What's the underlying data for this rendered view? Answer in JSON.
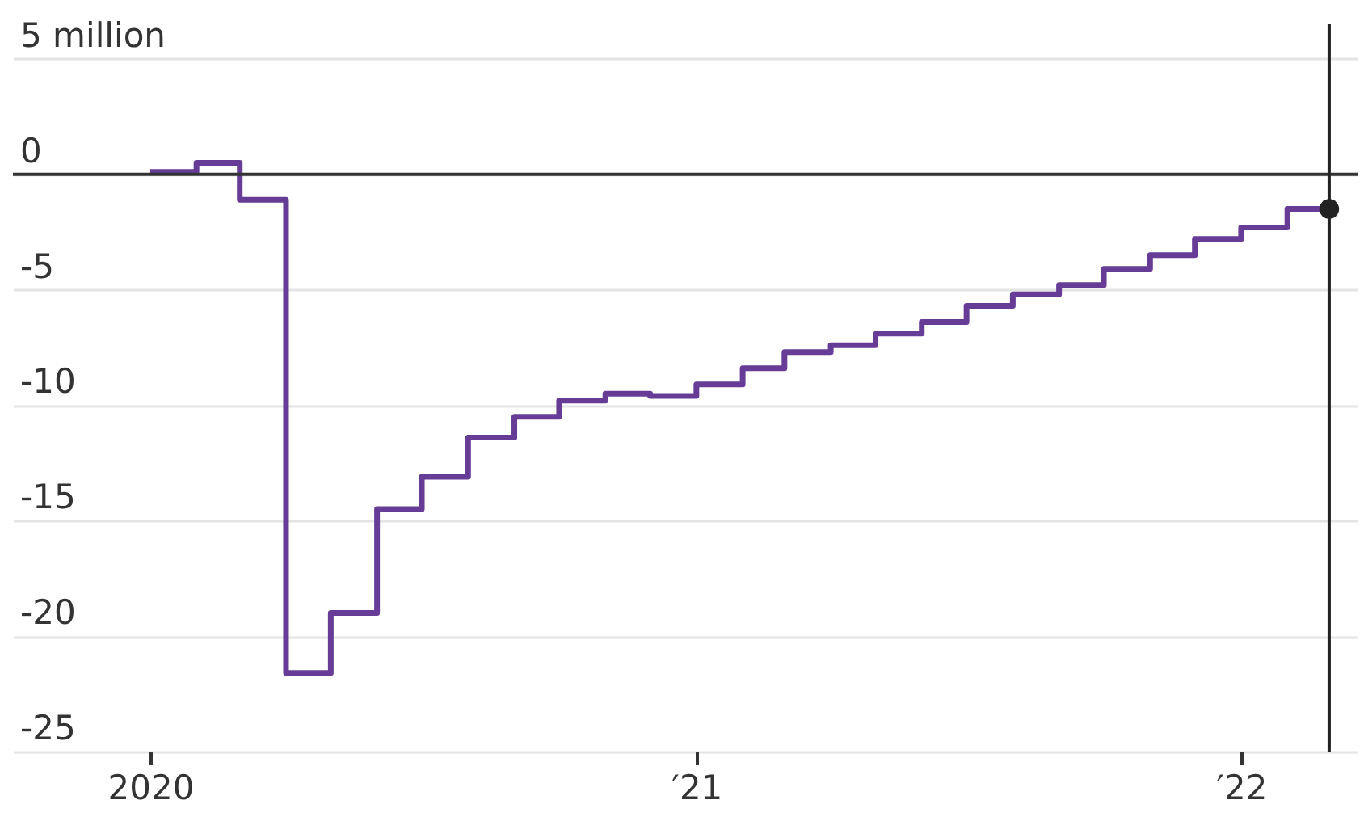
{
  "chart_data": {
    "type": "step",
    "x": [
      "2020-01",
      "2020-02",
      "2020-03",
      "2020-04",
      "2020-05",
      "2020-06",
      "2020-07",
      "2020-08",
      "2020-09",
      "2020-10",
      "2020-11",
      "2020-12",
      "2021-01",
      "2021-02",
      "2021-03",
      "2021-04",
      "2021-05",
      "2021-06",
      "2021-07",
      "2021-08",
      "2021-09",
      "2021-10",
      "2021-11",
      "2021-12",
      "2022-01",
      "2022-02",
      "2022-03"
    ],
    "series": [
      {
        "color": "#673c97",
        "values": [
          0.1,
          0.5,
          -1.1,
          -21.6,
          -19.0,
          -14.5,
          -13.1,
          -11.4,
          -10.5,
          -9.8,
          -9.5,
          -9.6,
          -9.1,
          -8.4,
          -7.7,
          -7.4,
          -6.9,
          -6.4,
          -5.7,
          -5.2,
          -4.8,
          -4.1,
          -3.5,
          -2.8,
          -2.3,
          -1.5,
          -1.5
        ]
      },
      {
        "type": "scatter",
        "color": "#222222",
        "marker": "circle",
        "x": [
          "2022-03"
        ],
        "values": [
          -1.5
        ]
      }
    ],
    "xlim": [
      "2019-10",
      "2022-03-20"
    ],
    "xticks": [
      {
        "value": "2020-01",
        "label": "2020"
      },
      {
        "value": "2021-01",
        "label": "′21"
      },
      {
        "value": "2022-01",
        "label": "′22"
      }
    ],
    "ylim": [
      -25,
      6.5
    ],
    "yticks": [
      {
        "value": 5,
        "label": "5 million"
      },
      0,
      -5,
      -10,
      -15,
      -20,
      -25
    ],
    "grid": "y",
    "ref_lines": [
      {
        "axis": "y",
        "value": 0,
        "color": "#333333"
      },
      {
        "axis": "x",
        "value": "2022-03",
        "color": "#222222"
      }
    ]
  }
}
